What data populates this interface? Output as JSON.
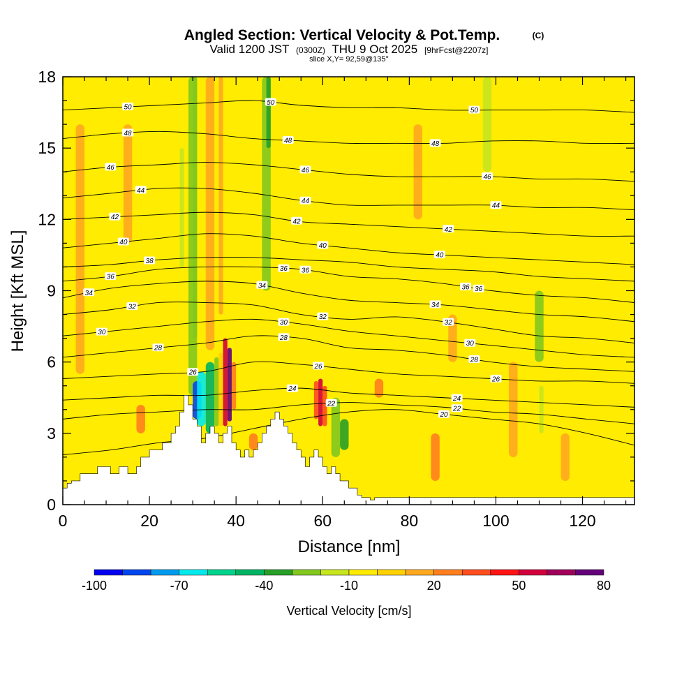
{
  "chart_data": {
    "type": "heatmap",
    "title": "Angled Section: Vertical Velocity & Pot.Temp.",
    "title_mark": "(C)",
    "subtitle_prefix": "Valid 1200 JST",
    "subtitle_utc": "(0300Z)",
    "subtitle_date": "THU 9 Oct 2025",
    "subtitle_fcst": "[9hrFcst@2207z]",
    "slice_label": "slice X,Y= 92,59@135°",
    "xlabel": "Distance [nm]",
    "ylabel": "Height [Kft MSL]",
    "xlim": [
      0,
      132
    ],
    "ylim": [
      0,
      18
    ],
    "x_ticks": [
      0,
      20,
      40,
      60,
      80,
      100,
      120
    ],
    "y_ticks": [
      0,
      3,
      6,
      9,
      12,
      15,
      18
    ],
    "colorbar": {
      "label": "Vertical Velocity [cm/s]",
      "tick_labels": [
        "-100",
        "-70",
        "-40",
        "-10",
        "20",
        "50",
        "80"
      ],
      "levels": [
        -100,
        80
      ],
      "colors": [
        "#0000ee",
        "#0046ee",
        "#009aee",
        "#00eaee",
        "#00d48c",
        "#00b464",
        "#28a028",
        "#82c81e",
        "#c8e61e",
        "#ffec00",
        "#ffd200",
        "#ffa91e",
        "#ff7f1e",
        "#ff4d1e",
        "#ff1414",
        "#d2003c",
        "#a0005a",
        "#64007a"
      ]
    },
    "background_color": "#ffec00",
    "terrain_profile": {
      "x": [
        0,
        1,
        1,
        2,
        2,
        4,
        4,
        8,
        8,
        11,
        11,
        13,
        13,
        15,
        15,
        17,
        17,
        18,
        18,
        20,
        20,
        23,
        23,
        25,
        25,
        26,
        26,
        27,
        27,
        28,
        28,
        29,
        29,
        30,
        30,
        31,
        31,
        32,
        32,
        33,
        33,
        34,
        34,
        35,
        35,
        36,
        36,
        37,
        37,
        38,
        38,
        39,
        39,
        40,
        40,
        41,
        41,
        42,
        42,
        43,
        43,
        44,
        44,
        45,
        45,
        46,
        46,
        47,
        47,
        48,
        48,
        49,
        49,
        50,
        50,
        51,
        51,
        52,
        52,
        53,
        53,
        54,
        54,
        55,
        55,
        56,
        56,
        57,
        57,
        58,
        58,
        59,
        59,
        60,
        60,
        61,
        61,
        62,
        62,
        63,
        63,
        64,
        64,
        66,
        66,
        68,
        68,
        69,
        69,
        71,
        71,
        72,
        72,
        132
      ],
      "y": [
        0.7,
        0.7,
        0.9,
        0.9,
        1.0,
        1.0,
        1.3,
        1.3,
        1.6,
        1.6,
        1.3,
        1.3,
        1.6,
        1.6,
        1.3,
        1.3,
        1.6,
        1.6,
        2.0,
        2.0,
        2.3,
        2.3,
        2.6,
        2.6,
        3.0,
        3.0,
        3.3,
        3.3,
        3.9,
        3.9,
        4.6,
        4.6,
        4.2,
        4.2,
        3.6,
        3.6,
        3.3,
        3.3,
        2.6,
        2.6,
        3.0,
        3.0,
        3.3,
        3.3,
        3.0,
        3.0,
        2.6,
        2.6,
        3.0,
        3.0,
        3.3,
        3.3,
        2.6,
        2.6,
        2.3,
        2.3,
        2.0,
        2.0,
        2.3,
        2.3,
        2.0,
        2.0,
        2.3,
        2.3,
        2.6,
        2.6,
        3.0,
        3.0,
        3.3,
        3.3,
        3.6,
        3.6,
        3.9,
        3.9,
        3.6,
        3.6,
        3.3,
        3.3,
        3.0,
        3.0,
        2.6,
        2.6,
        2.3,
        2.3,
        2.0,
        2.0,
        1.6,
        1.6,
        2.0,
        2.0,
        2.3,
        2.3,
        2.0,
        2.0,
        1.6,
        1.6,
        1.3,
        1.3,
        1.6,
        1.6,
        1.3,
        1.3,
        1.0,
        1.0,
        0.7,
        0.7,
        0.4,
        0.4,
        0.3,
        0.3,
        0.2,
        0.2,
        0.3,
        0.3
      ]
    },
    "velocity_cells": [
      {
        "x": [
          29,
          31
        ],
        "y": [
          4.6,
          18
        ],
        "v": -25
      },
      {
        "x": [
          30,
          31
        ],
        "y": [
          7,
          18
        ],
        "v": -30
      },
      {
        "x": [
          27,
          28
        ],
        "y": [
          10,
          15
        ],
        "v": -12
      },
      {
        "x": [
          30,
          32
        ],
        "y": [
          3.6,
          5.2
        ],
        "v": -85
      },
      {
        "x": [
          31,
          33
        ],
        "y": [
          3.3,
          5.6
        ],
        "v": -65
      },
      {
        "x": [
          33,
          35
        ],
        "y": [
          3.0,
          6.0
        ],
        "v": -45
      },
      {
        "x": [
          35,
          36
        ],
        "y": [
          3.3,
          6.2
        ],
        "v": -28
      },
      {
        "x": [
          36,
          37
        ],
        "y": [
          3.3,
          6.4
        ],
        "v": 5
      },
      {
        "x": [
          37,
          38
        ],
        "y": [
          3.3,
          7.0
        ],
        "v": 55
      },
      {
        "x": [
          38,
          39
        ],
        "y": [
          3.5,
          6.6
        ],
        "v": 75
      },
      {
        "x": [
          39,
          40
        ],
        "y": [
          4.0,
          6.0
        ],
        "v": 25
      },
      {
        "x": [
          33,
          35
        ],
        "y": [
          6.5,
          18
        ],
        "v": 18
      },
      {
        "x": [
          36,
          37
        ],
        "y": [
          8,
          18
        ],
        "v": 12
      },
      {
        "x": [
          46,
          48
        ],
        "y": [
          9,
          18
        ],
        "v": -28
      },
      {
        "x": [
          47,
          48
        ],
        "y": [
          15,
          18
        ],
        "v": -35
      },
      {
        "x": [
          58,
          59
        ],
        "y": [
          3.6,
          5.2
        ],
        "v": 30
      },
      {
        "x": [
          59,
          60
        ],
        "y": [
          3.3,
          5.3
        ],
        "v": 50
      },
      {
        "x": [
          60,
          61
        ],
        "y": [
          3.3,
          5.0
        ],
        "v": 38
      },
      {
        "x": [
          62,
          64
        ],
        "y": [
          2.0,
          4.5
        ],
        "v": -28
      },
      {
        "x": [
          64,
          66
        ],
        "y": [
          2.3,
          3.6
        ],
        "v": -38
      },
      {
        "x": [
          43,
          45
        ],
        "y": [
          2.3,
          3.0
        ],
        "v": 28
      },
      {
        "x": [
          85,
          87
        ],
        "y": [
          1.0,
          3.0
        ],
        "v": 25
      },
      {
        "x": [
          72,
          74
        ],
        "y": [
          4.5,
          5.3
        ],
        "v": 20
      },
      {
        "x": [
          17,
          19
        ],
        "y": [
          3.0,
          4.2
        ],
        "v": 28
      },
      {
        "x": [
          14,
          16
        ],
        "y": [
          11,
          16
        ],
        "v": 12
      },
      {
        "x": [
          109,
          111
        ],
        "y": [
          6,
          9
        ],
        "v": -22
      },
      {
        "x": [
          110,
          111
        ],
        "y": [
          3.0,
          5.0
        ],
        "v": -18
      },
      {
        "x": [
          97,
          99
        ],
        "y": [
          14,
          18
        ],
        "v": -15
      },
      {
        "x": [
          103,
          105
        ],
        "y": [
          2.0,
          6.0
        ],
        "v": 15
      },
      {
        "x": [
          115,
          117
        ],
        "y": [
          1.0,
          3.0
        ],
        "v": 12
      },
      {
        "x": [
          3,
          5
        ],
        "y": [
          5.5,
          16
        ],
        "v": 10
      },
      {
        "x": [
          89,
          91
        ],
        "y": [
          6,
          8
        ],
        "v": 12
      },
      {
        "x": [
          81,
          83
        ],
        "y": [
          12,
          16
        ],
        "v": 12
      },
      {
        "x": [
          54,
          56
        ],
        "y": [
          10,
          14
        ],
        "v": -8
      }
    ],
    "theta_contours": [
      {
        "level": 20,
        "y": [
          2.1,
          2.3,
          2.6,
          2.8,
          3.2,
          3.6,
          3.9,
          4.0,
          3.8,
          3.6,
          3.4,
          3.0,
          2.5
        ],
        "labels": [
          {
            "x": 88,
            "text": "20"
          }
        ]
      },
      {
        "level": 22,
        "y": [
          3.6,
          3.8,
          3.9,
          4.0,
          4.0,
          4.2,
          4.3,
          4.2,
          4.1,
          3.9,
          3.8,
          3.6,
          3.4
        ],
        "labels": [
          {
            "x": 62,
            "text": "22"
          },
          {
            "x": 91,
            "text": "22"
          }
        ]
      },
      {
        "level": 24,
        "y": [
          4.4,
          4.5,
          4.6,
          4.6,
          4.8,
          4.9,
          4.7,
          4.6,
          4.5,
          4.4,
          4.3,
          4.2,
          4.1
        ],
        "labels": [
          {
            "x": 53,
            "text": "24"
          },
          {
            "x": 91,
            "text": "24"
          }
        ]
      },
      {
        "level": 26,
        "y": [
          5.3,
          5.4,
          5.5,
          5.6,
          6.0,
          5.9,
          5.7,
          5.5,
          5.4,
          5.3,
          5.2,
          5.2,
          5.1
        ],
        "labels": [
          {
            "x": 30,
            "text": "26"
          },
          {
            "x": 59,
            "text": "26"
          },
          {
            "x": 100,
            "text": "26"
          }
        ]
      },
      {
        "level": 28,
        "y": [
          6.2,
          6.4,
          6.6,
          6.8,
          7.1,
          7.0,
          6.6,
          6.5,
          6.3,
          6.0,
          5.8,
          5.7,
          5.6
        ],
        "labels": [
          {
            "x": 22,
            "text": "28"
          },
          {
            "x": 51,
            "text": "28"
          },
          {
            "x": 95,
            "text": "28"
          }
        ]
      },
      {
        "level": 30,
        "y": [
          7.1,
          7.3,
          7.5,
          7.7,
          7.8,
          7.6,
          7.3,
          7.1,
          6.9,
          6.7,
          6.5,
          6.3,
          6.2
        ],
        "labels": [
          {
            "x": 9,
            "text": "30"
          },
          {
            "x": 51,
            "text": "30"
          },
          {
            "x": 94,
            "text": "30"
          }
        ]
      },
      {
        "level": 32,
        "y": [
          8.0,
          8.2,
          8.5,
          8.5,
          8.4,
          8.0,
          7.8,
          7.9,
          7.7,
          7.4,
          7.1,
          7.0,
          6.8
        ],
        "labels": [
          {
            "x": 16,
            "text": "32"
          },
          {
            "x": 60,
            "text": "32"
          },
          {
            "x": 89,
            "text": "32"
          }
        ]
      },
      {
        "level": 34,
        "y": [
          8.7,
          9.1,
          9.3,
          9.4,
          9.3,
          8.9,
          8.6,
          8.5,
          8.4,
          8.2,
          8.0,
          7.9,
          7.7
        ],
        "labels": [
          {
            "x": 6,
            "text": "34"
          },
          {
            "x": 46,
            "text": "34"
          },
          {
            "x": 86,
            "text": "34"
          }
        ]
      },
      {
        "level": 36,
        "y": [
          9.4,
          9.6,
          9.9,
          10.0,
          10.0,
          9.9,
          9.6,
          9.5,
          9.3,
          9.0,
          8.8,
          8.7,
          8.5
        ],
        "labels": [
          {
            "x": 11,
            "text": "36"
          },
          {
            "x": 51,
            "text": "36"
          },
          {
            "x": 56,
            "text": "36"
          },
          {
            "x": 93,
            "text": "36"
          },
          {
            "x": 96,
            "text": "36"
          }
        ]
      },
      {
        "level": 38,
        "y": [
          10.0,
          10.1,
          10.3,
          10.4,
          10.4,
          10.3,
          10.2,
          10.0,
          9.9,
          9.8,
          9.6,
          9.5,
          9.4
        ],
        "labels": [
          {
            "x": 20,
            "text": "38"
          }
        ]
      },
      {
        "level": 40,
        "y": [
          10.8,
          11.0,
          11.2,
          11.4,
          11.3,
          11.0,
          10.8,
          10.6,
          10.5,
          10.4,
          10.3,
          10.2,
          10.1
        ],
        "labels": [
          {
            "x": 14,
            "text": "40"
          },
          {
            "x": 60,
            "text": "40"
          },
          {
            "x": 87,
            "text": "40"
          }
        ]
      },
      {
        "level": 42,
        "y": [
          12.0,
          12.1,
          12.2,
          12.3,
          12.2,
          11.9,
          11.8,
          11.7,
          11.6,
          11.5,
          11.4,
          11.3,
          11.3
        ],
        "labels": [
          {
            "x": 12,
            "text": "42"
          },
          {
            "x": 54,
            "text": "42"
          },
          {
            "x": 89,
            "text": "42"
          }
        ]
      },
      {
        "level": 44,
        "y": [
          12.9,
          13.1,
          13.3,
          13.3,
          13.1,
          12.8,
          12.6,
          12.6,
          12.6,
          12.6,
          12.5,
          12.5,
          12.4
        ],
        "labels": [
          {
            "x": 18,
            "text": "44"
          },
          {
            "x": 56,
            "text": "44"
          },
          {
            "x": 100,
            "text": "44"
          }
        ]
      },
      {
        "level": 46,
        "y": [
          14.0,
          14.2,
          14.3,
          14.4,
          14.3,
          14.1,
          13.9,
          13.8,
          13.8,
          13.8,
          13.7,
          13.7,
          13.6
        ],
        "labels": [
          {
            "x": 11,
            "text": "46"
          },
          {
            "x": 56,
            "text": "46"
          },
          {
            "x": 98,
            "text": "46"
          }
        ]
      },
      {
        "level": 48,
        "y": [
          15.4,
          15.6,
          15.7,
          15.6,
          15.4,
          15.3,
          15.2,
          15.2,
          15.2,
          15.3,
          15.3,
          15.2,
          15.2
        ],
        "labels": [
          {
            "x": 15,
            "text": "48"
          },
          {
            "x": 52,
            "text": "48"
          },
          {
            "x": 86,
            "text": "48"
          }
        ]
      },
      {
        "level": 50,
        "y": [
          16.6,
          16.7,
          16.8,
          16.9,
          17.0,
          16.8,
          16.7,
          16.7,
          16.6,
          16.6,
          16.6,
          16.6,
          16.5
        ],
        "labels": [
          {
            "x": 15,
            "text": "50"
          },
          {
            "x": 48,
            "text": "50"
          },
          {
            "x": 95,
            "text": "50"
          }
        ]
      }
    ]
  }
}
